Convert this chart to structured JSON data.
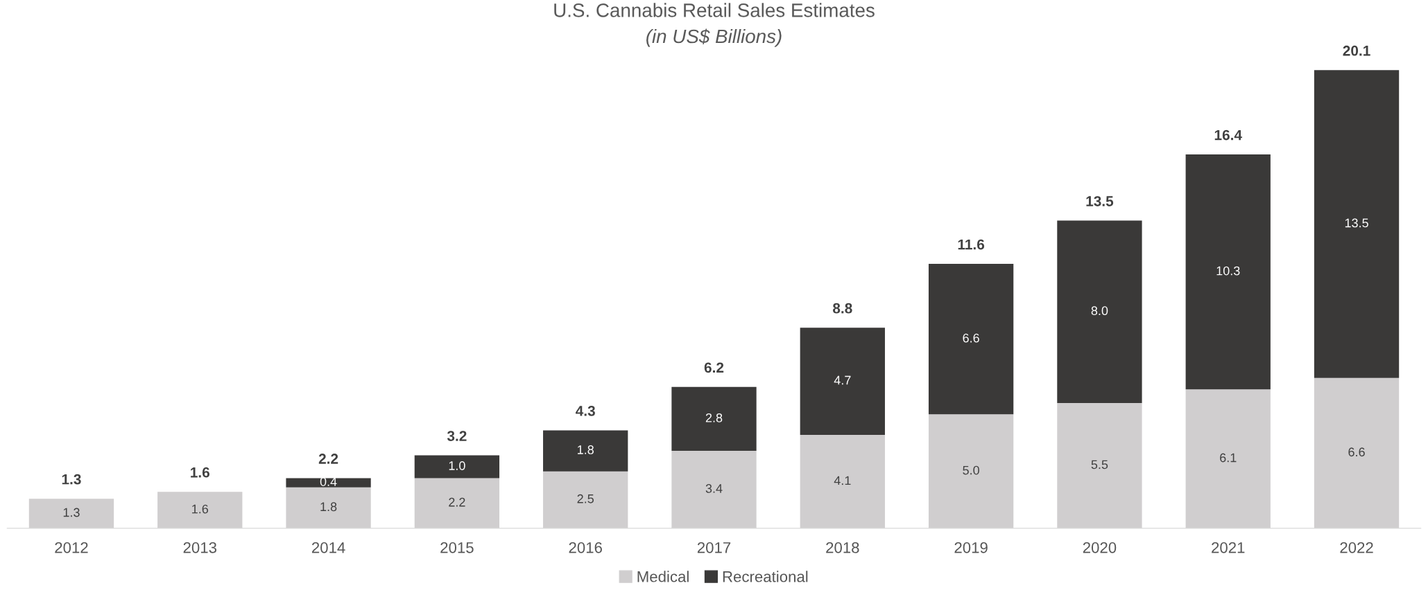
{
  "chart_data": {
    "type": "bar",
    "title": "U.S. Cannabis Retail Sales Estimates",
    "subtitle": "(in US$ Billions)",
    "categories": [
      "2012",
      "2013",
      "2014",
      "2015",
      "2016",
      "2017",
      "2018",
      "2019",
      "2020",
      "2021",
      "2022"
    ],
    "stacked": true,
    "legend": "bottom",
    "grid": false,
    "tick_labels": "x",
    "series": [
      {
        "name": "Medical",
        "color": "#d0cecf",
        "values": [
          1.3,
          1.6,
          1.8,
          2.2,
          2.5,
          3.4,
          4.1,
          5.0,
          5.5,
          6.1,
          6.6
        ],
        "value_labels": [
          "1.3",
          "1.6",
          "1.8",
          "2.2",
          "2.5",
          "3.4",
          "4.1",
          "5.0",
          "5.5",
          "6.1",
          "6.6"
        ]
      },
      {
        "name": "Recreational",
        "color": "#3a3938",
        "values": [
          null,
          null,
          0.4,
          1.0,
          1.8,
          2.8,
          4.7,
          6.6,
          8.0,
          10.3,
          13.5
        ],
        "value_labels": [
          null,
          null,
          "0.4",
          "1.0",
          "1.8",
          "2.8",
          "4.7",
          "6.6",
          "8.0",
          "10.3",
          "13.5"
        ]
      }
    ],
    "totals": [
      "1.3",
      "1.6",
      "2.2",
      "3.2",
      "4.3",
      "6.2",
      "8.8",
      "11.6",
      "13.5",
      "16.4",
      "20.1"
    ]
  }
}
